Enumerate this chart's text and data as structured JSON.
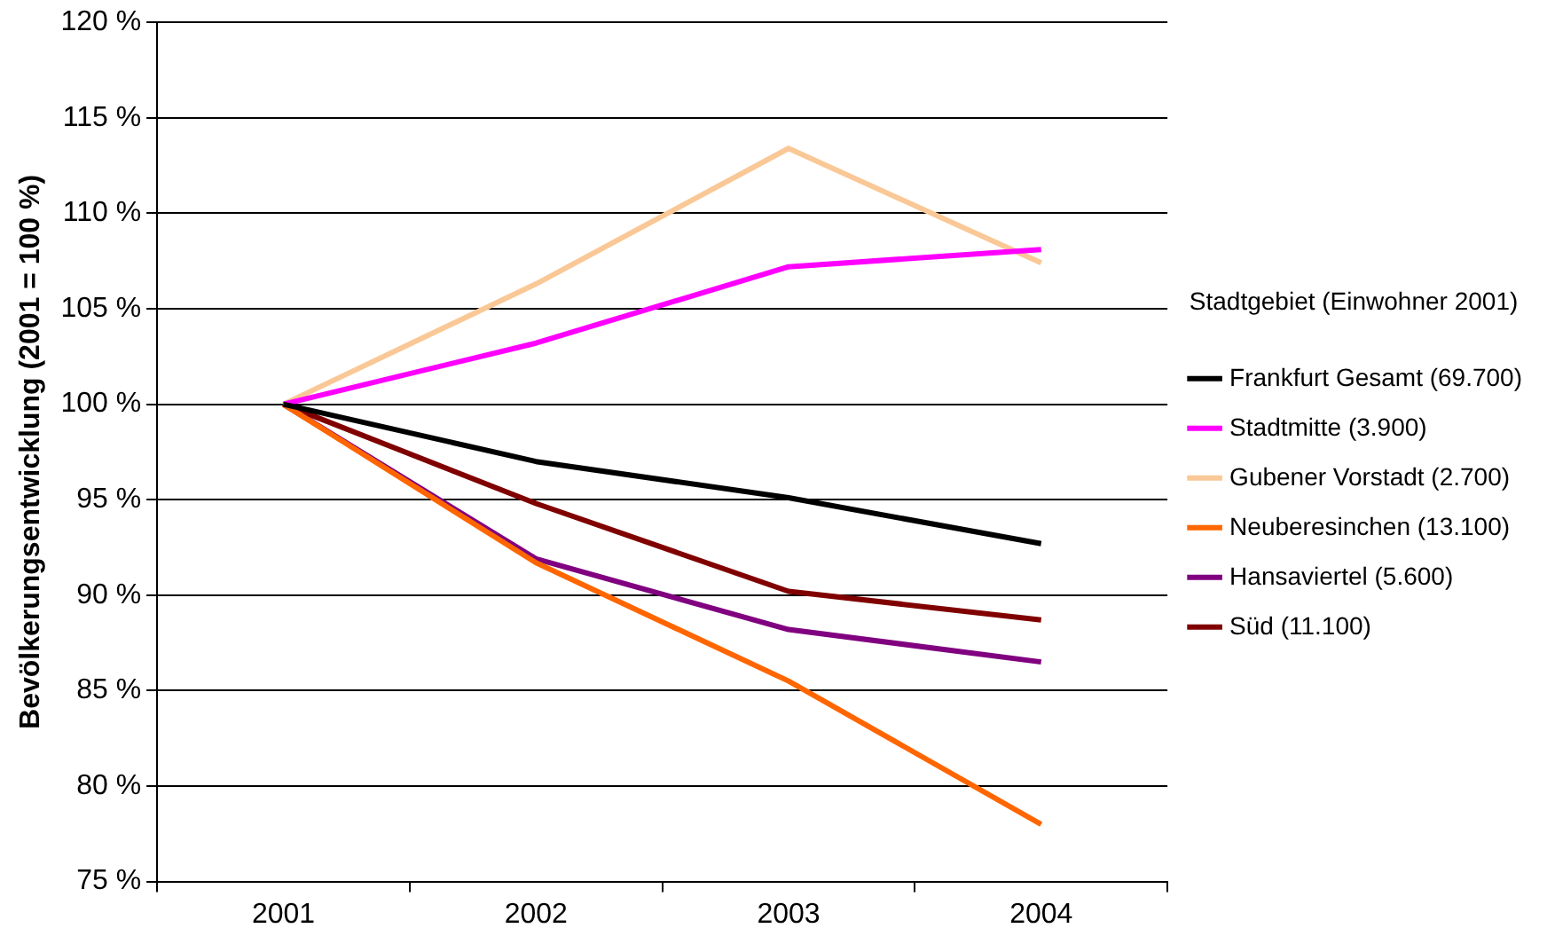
{
  "chart_data": {
    "type": "line",
    "ylabel": "Bevölkerungsentwicklung (2001 = 100 %)",
    "legend_title": "Stadtgebiet (Einwohner 2001)",
    "categories": [
      "2001",
      "2002",
      "2003",
      "2004"
    ],
    "series": [
      {
        "name": "Frankfurt Gesamt (69.700)",
        "color": "#000000",
        "values": [
          100,
          97.0,
          95.1,
          92.7
        ]
      },
      {
        "name": "Stadtmitte (3.900)",
        "color": "#ff00ff",
        "values": [
          100,
          103.2,
          107.2,
          108.1
        ]
      },
      {
        "name": "Gubener Vorstadt (2.700)",
        "color": "#fac896",
        "values": [
          100,
          106.3,
          113.4,
          107.4
        ]
      },
      {
        "name": "Neuberesinchen (13.100)",
        "color": "#ff6600",
        "values": [
          100,
          91.7,
          85.5,
          78.0
        ]
      },
      {
        "name": "Hansaviertel (5.600)",
        "color": "#800080",
        "values": [
          100,
          91.9,
          88.2,
          86.5
        ]
      },
      {
        "name": "Süd (11.100)",
        "color": "#800000",
        "values": [
          100,
          94.8,
          90.2,
          88.7
        ]
      }
    ],
    "ylim": [
      75,
      120
    ],
    "yticks": [
      {
        "value": 75,
        "label": "75 %"
      },
      {
        "value": 80,
        "label": "80 %"
      },
      {
        "value": 85,
        "label": "85 %"
      },
      {
        "value": 90,
        "label": "90 %"
      },
      {
        "value": 95,
        "label": "95 %"
      },
      {
        "value": 100,
        "label": "100 %"
      },
      {
        "value": 105,
        "label": "105 %"
      },
      {
        "value": 110,
        "label": "110 %"
      },
      {
        "value": 115,
        "label": "115 %"
      },
      {
        "value": 120,
        "label": "120 %"
      }
    ],
    "grid": "y",
    "legend": "right",
    "marker": "none",
    "line_style": "solid"
  }
}
